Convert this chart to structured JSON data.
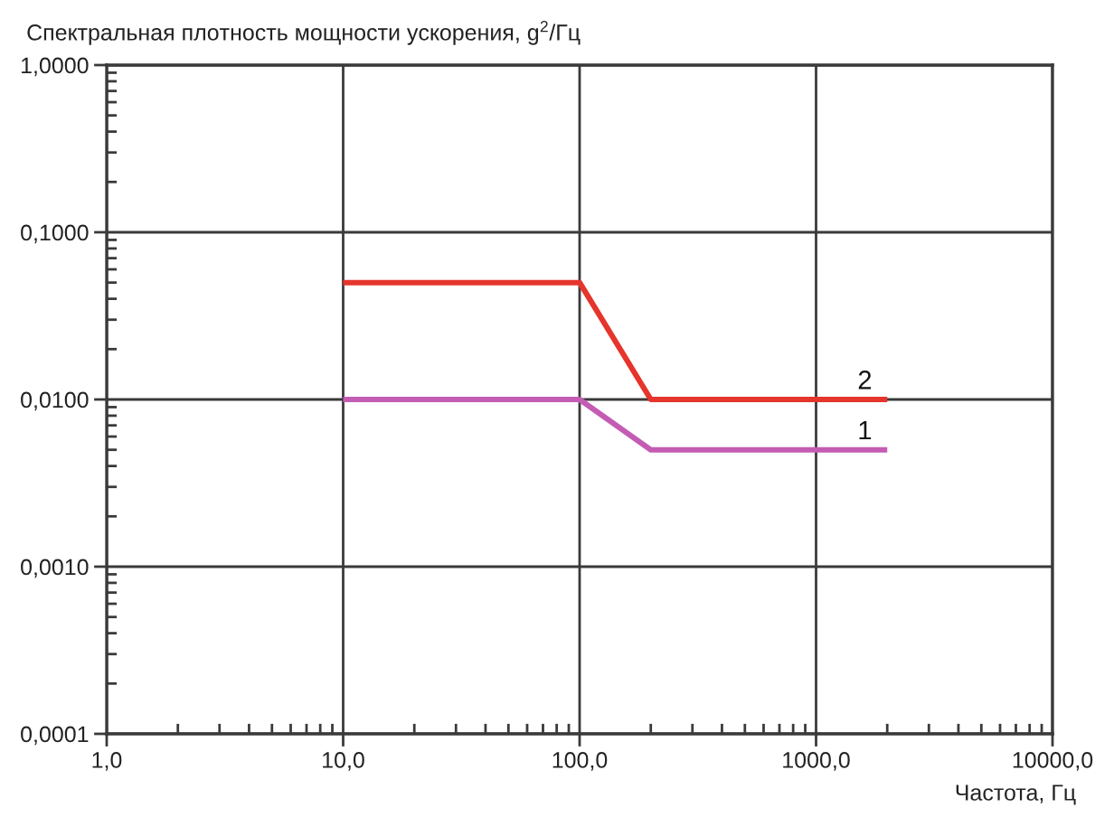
{
  "chart_data": {
    "type": "line",
    "ylabel": "Спектральная плотность мощности ускорения, g$^{2}$/Гц",
    "xlabel": "Частота, Гц",
    "log": "xy",
    "xlim": [
      1,
      10000
    ],
    "ylim": [
      0.0001,
      1
    ],
    "xticks": [
      {
        "value": 1,
        "label": "1,0"
      },
      {
        "value": 10,
        "label": "10,0"
      },
      {
        "value": 100,
        "label": "100,0"
      },
      {
        "value": 1000,
        "label": "1000,0"
      },
      {
        "value": 10000,
        "label": "10000,0"
      }
    ],
    "yticks": [
      {
        "value": 0.0001,
        "label": "0,0001"
      },
      {
        "value": 0.001,
        "label": "0,0010"
      },
      {
        "value": 0.01,
        "label": "0,0100"
      },
      {
        "value": 0.1,
        "label": "0,1000"
      },
      {
        "value": 1,
        "label": "1,0000"
      }
    ],
    "grid": true,
    "line_style": "solid",
    "series": [
      {
        "name": "1",
        "color": "#c45cb4",
        "x": [
          10,
          100,
          200,
          2000
        ],
        "values": [
          0.01,
          0.01,
          0.005,
          0.005
        ]
      },
      {
        "name": "2",
        "color": "#e5352c",
        "x": [
          10,
          100,
          200,
          2000
        ],
        "values": [
          0.05,
          0.05,
          0.01,
          0.01
        ]
      }
    ]
  }
}
